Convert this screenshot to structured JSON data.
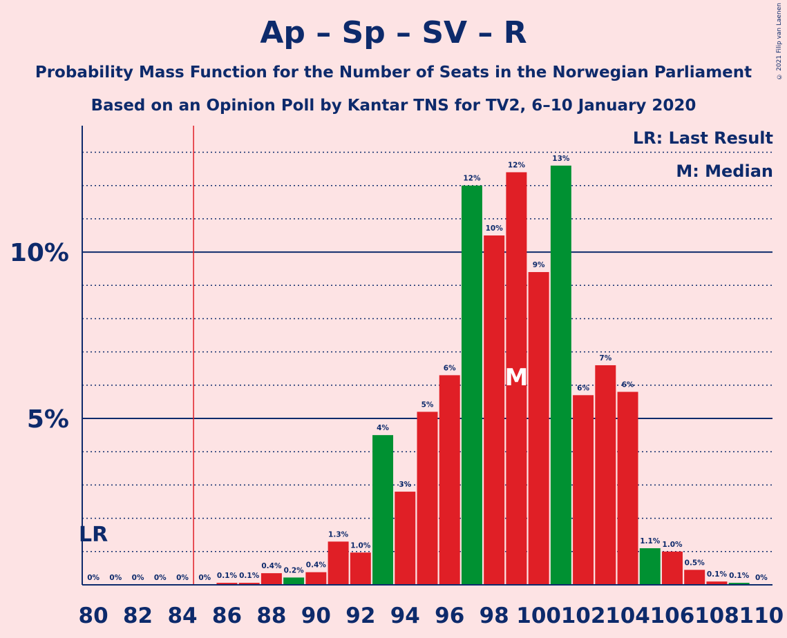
{
  "title": "Ap – Sp – SV – R",
  "subtitle1": "Probability Mass Function for the Number of Seats in the Norwegian Parliament",
  "subtitle2": "Based on an Opinion Poll by Kantar TNS for TV2, 6–10 January 2020",
  "copyright": "© 2021 Filip van Laenen",
  "legend": {
    "lr": "LR: Last Result",
    "m": "M: Median"
  },
  "colors": {
    "background": "#fde3e4",
    "red": "#e01f26",
    "green": "#009132",
    "axis": "#0d2a6b",
    "last_result_line": "#e01f26"
  },
  "chart_data": {
    "type": "bar",
    "x": [
      80,
      81,
      82,
      83,
      84,
      85,
      86,
      87,
      88,
      89,
      90,
      91,
      92,
      93,
      94,
      95,
      96,
      97,
      98,
      99,
      100,
      101,
      102,
      103,
      104,
      105,
      106,
      107,
      108,
      109,
      110
    ],
    "values": [
      0,
      0,
      0,
      0,
      0,
      0,
      0.06,
      0.06,
      0.35,
      0.22,
      0.38,
      1.3,
      0.97,
      4.5,
      2.8,
      5.2,
      6.3,
      12.0,
      10.5,
      12.4,
      9.4,
      12.6,
      5.7,
      6.6,
      5.8,
      1.1,
      1.0,
      0.45,
      0.1,
      0.06,
      0
    ],
    "labels": [
      "0%",
      "0%",
      "0%",
      "0%",
      "0%",
      "0%",
      "0.1%",
      "0.1%",
      "0.4%",
      "0.2%",
      "0.4%",
      "1.3%",
      "1.0%",
      "4%",
      "3%",
      "5%",
      "6%",
      "12%",
      "10%",
      "12%",
      "9%",
      "13%",
      "6%",
      "7%",
      "6%",
      "1.1%",
      "1.0%",
      "0.5%",
      "0.1%",
      "0.1%",
      "0%"
    ],
    "bar_colors": [
      "red",
      "red",
      "red",
      "red",
      "red",
      "red",
      "red",
      "red",
      "red",
      "green",
      "red",
      "red",
      "red",
      "green",
      "red",
      "red",
      "red",
      "green",
      "red",
      "red",
      "red",
      "green",
      "red",
      "red",
      "red",
      "green",
      "red",
      "red",
      "red",
      "green",
      "red"
    ],
    "xticks": [
      80,
      82,
      84,
      86,
      88,
      90,
      92,
      94,
      96,
      98,
      100,
      102,
      104,
      106,
      108,
      110
    ],
    "yticks": [
      5,
      10
    ],
    "ytick_labels": [
      "5%",
      "10%"
    ],
    "ylim": [
      0,
      13.8
    ],
    "minor_grid_step": 1,
    "last_result": {
      "x": 80,
      "label": "LR"
    },
    "red_line_at": 84.5,
    "median": {
      "x": 99,
      "label": "M"
    }
  }
}
